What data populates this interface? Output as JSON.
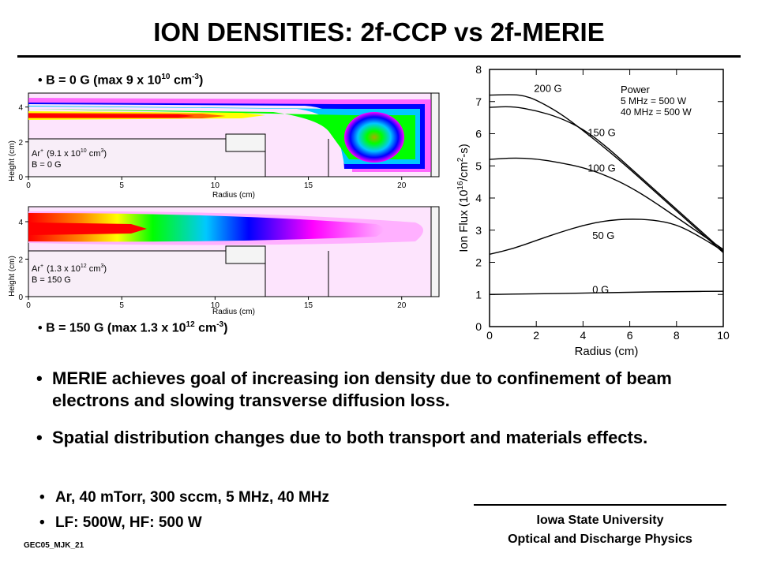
{
  "header": {
    "title": "ION DENSITIES: 2f-CCP vs 2f-MERIE"
  },
  "captions": {
    "top": {
      "bullet": "•",
      "prefix": "B = 0 G (max 9 x 10",
      "exp": "10",
      "mid": " cm",
      "unit_exp": "-3",
      "suffix": ")"
    },
    "bottom": {
      "bullet": "•",
      "prefix": "B = 150 G (max 1.3 x 10",
      "exp": "12",
      "mid": " cm",
      "unit_exp": "-3",
      "suffix": ")"
    }
  },
  "density_maps": [
    {
      "id": "b0",
      "ylabel": "Height (cm)",
      "xlabel": "Radius (cm)",
      "x_ticks": [
        "0",
        "5",
        "10",
        "15",
        "20"
      ],
      "y_ticks": [
        "0",
        "2",
        "4"
      ],
      "legend_species": "Ar",
      "legend_value_prefix": "(9.1 x 10",
      "legend_value_exp": "10",
      "legend_value_suffix": " cm",
      "legend_field": "B = 0 G",
      "palette": [
        "#ff00ff",
        "#0000ff",
        "#00d0ff",
        "#00ff00",
        "#ffff00",
        "#ff0000"
      ]
    },
    {
      "id": "b150",
      "ylabel": "Height (cm)",
      "xlabel": "Radius (cm)",
      "x_ticks": [
        "0",
        "5",
        "10",
        "15",
        "20"
      ],
      "y_ticks": [
        "0",
        "2",
        "4"
      ],
      "legend_species": "Ar",
      "legend_value_prefix": "(1.3 x 10",
      "legend_value_exp": "12",
      "legend_value_suffix": " cm",
      "legend_field": "B = 150 G",
      "palette": [
        "#ff00ff",
        "#0000ff",
        "#00d0ff",
        "#00ff00",
        "#ffff00",
        "#ff0000"
      ]
    }
  ],
  "chart_data": {
    "type": "line",
    "xlabel": "Radius (cm)",
    "ylabel": "Ion Flux (10",
    "ylabel_exp": "16",
    "ylabel_unit": "/cm",
    "ylabel_unit_exp": "2",
    "ylabel_end": "-s)",
    "xlim": [
      0,
      10
    ],
    "ylim": [
      0,
      8
    ],
    "x_ticks": [
      0,
      2,
      4,
      6,
      8,
      10
    ],
    "y_ticks": [
      0,
      1,
      2,
      3,
      4,
      5,
      6,
      7,
      8
    ],
    "legend": {
      "title": "Power",
      "lines": [
        "5 MHz = 500 W",
        "40 MHz = 500 W"
      ]
    },
    "series": [
      {
        "name": "0 G",
        "label_at": [
          4.4,
          1.17
        ],
        "x": [
          0,
          2,
          4,
          6,
          8,
          10
        ],
        "y": [
          1.0,
          1.02,
          1.04,
          1.07,
          1.09,
          1.1
        ]
      },
      {
        "name": "50 G",
        "label_at": [
          4.4,
          2.85
        ],
        "x": [
          0,
          1,
          2,
          3,
          4,
          5,
          6,
          7,
          8,
          9,
          10
        ],
        "y": [
          2.25,
          2.42,
          2.68,
          2.93,
          3.15,
          3.3,
          3.35,
          3.32,
          3.18,
          2.8,
          2.35
        ]
      },
      {
        "name": "100 G",
        "label_at": [
          4.2,
          4.95
        ],
        "x": [
          0,
          1,
          2,
          3,
          4,
          5,
          6,
          7,
          8,
          9,
          10
        ],
        "y": [
          5.2,
          5.25,
          5.22,
          5.1,
          4.95,
          4.7,
          4.35,
          3.9,
          3.4,
          2.9,
          2.4
        ]
      },
      {
        "name": "150 G",
        "label_at": [
          4.2,
          6.05
        ],
        "x": [
          0,
          1,
          2,
          3,
          4,
          5,
          6,
          7,
          8,
          9,
          10
        ],
        "y": [
          6.82,
          6.85,
          6.72,
          6.5,
          6.15,
          5.6,
          4.95,
          4.3,
          3.65,
          3.0,
          2.35
        ]
      },
      {
        "name": "200 G",
        "label_at": [
          1.9,
          7.42
        ],
        "x": [
          0,
          1,
          1.5,
          2,
          3,
          4,
          5,
          6,
          7,
          8,
          9,
          10
        ],
        "y": [
          7.2,
          7.22,
          7.18,
          7.05,
          6.65,
          6.1,
          5.52,
          4.9,
          4.25,
          3.6,
          2.95,
          2.3
        ]
      }
    ]
  },
  "bullets": [
    {
      "dot": "•",
      "text": "MERIE achieves goal of increasing ion density due to confinement of beam electrons and slowing transverse diffusion loss."
    },
    {
      "dot": "•",
      "text": "Spatial distribution changes due to both transport and materials effects."
    }
  ],
  "conditions": [
    {
      "dot": "•",
      "text": "Ar, 40 mTorr, 300 sccm, 5 MHz, 40 MHz"
    },
    {
      "dot": "•",
      "text": "LF: 500W, HF: 500 W"
    }
  ],
  "footer": {
    "line1": "Iowa State University",
    "line2": "Optical and Discharge Physics",
    "code": "GEC05_MJK_21"
  }
}
